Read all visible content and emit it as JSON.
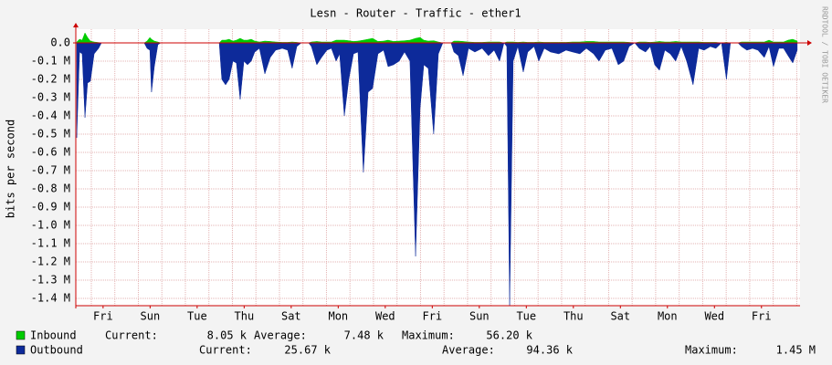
{
  "chart_data": {
    "type": "area",
    "title": "Lesn - Router - Traffic - ether1",
    "y_label": "bits per second",
    "side_text": "RRDTOOL / TOBI OETIKER",
    "xlim": [
      -0.66,
      30.14
    ],
    "ylim": [
      -1440000,
      75000
    ],
    "grid": true,
    "xticks": [
      {
        "value": 0.5,
        "label": "Fri"
      },
      {
        "value": 2.5,
        "label": "Sun"
      },
      {
        "value": 4.5,
        "label": "Tue"
      },
      {
        "value": 6.5,
        "label": "Thu"
      },
      {
        "value": 8.5,
        "label": "Sat"
      },
      {
        "value": 10.5,
        "label": "Mon"
      },
      {
        "value": 12.5,
        "label": "Wed"
      },
      {
        "value": 14.5,
        "label": "Fri"
      },
      {
        "value": 16.5,
        "label": "Sun"
      },
      {
        "value": 18.5,
        "label": "Tue"
      },
      {
        "value": 20.5,
        "label": "Thu"
      },
      {
        "value": 22.5,
        "label": "Sat"
      },
      {
        "value": 24.5,
        "label": "Mon"
      },
      {
        "value": 26.5,
        "label": "Wed"
      },
      {
        "value": 28.5,
        "label": "Fri"
      }
    ],
    "yticks": [
      {
        "value": 0,
        "label": "0.0"
      },
      {
        "value": -100000,
        "label": "-0.1 M"
      },
      {
        "value": -200000,
        "label": "-0.2 M"
      },
      {
        "value": -300000,
        "label": "-0.3 M"
      },
      {
        "value": -400000,
        "label": "-0.4 M"
      },
      {
        "value": -500000,
        "label": "-0.5 M"
      },
      {
        "value": -600000,
        "label": "-0.6 M"
      },
      {
        "value": -700000,
        "label": "-0.7 M"
      },
      {
        "value": -800000,
        "label": "-0.8 M"
      },
      {
        "value": -900000,
        "label": "-0.9 M"
      },
      {
        "value": -1000000,
        "label": "-1.0 M"
      },
      {
        "value": -1100000,
        "label": "-1.1 M"
      },
      {
        "value": -1200000,
        "label": "-1.2 M"
      },
      {
        "value": -1300000,
        "label": "-1.3 M"
      },
      {
        "value": -1400000,
        "label": "-1.4 M"
      }
    ],
    "x": [
      -0.62,
      -0.5,
      -0.39,
      -0.27,
      -0.16,
      -0.04,
      0.12,
      0.31,
      0.43,
      2.25,
      2.37,
      2.49,
      2.56,
      2.68,
      2.83,
      2.95,
      5.44,
      5.55,
      5.71,
      5.86,
      6.02,
      6.17,
      6.33,
      6.49,
      6.64,
      6.8,
      6.95,
      7.15,
      7.38,
      7.61,
      7.84,
      8.12,
      8.35,
      8.54,
      8.74,
      8.93,
      9.24,
      9.36,
      9.59,
      9.79,
      10.02,
      10.21,
      10.41,
      10.56,
      10.76,
      10.95,
      11.15,
      11.34,
      11.57,
      11.77,
      11.96,
      12.19,
      12.43,
      12.62,
      12.85,
      13.09,
      13.32,
      13.55,
      13.79,
      13.98,
      14.14,
      14.33,
      14.56,
      14.76,
      14.95,
      15.3,
      15.42,
      15.61,
      15.81,
      16.04,
      16.31,
      16.62,
      16.89,
      17.13,
      17.36,
      17.55,
      17.67,
      17.79,
      17.94,
      18.14,
      18.37,
      18.56,
      18.83,
      19.03,
      19.26,
      19.53,
      19.88,
      20.19,
      20.47,
      20.78,
      21.05,
      21.36,
      21.59,
      21.86,
      22.14,
      22.41,
      22.64,
      22.87,
      23.11,
      23.3,
      23.57,
      23.77,
      23.96,
      24.16,
      24.39,
      24.62,
      24.85,
      25.09,
      25.32,
      25.59,
      25.83,
      26.06,
      26.33,
      26.56,
      26.8,
      27.01,
      27.18,
      27.5,
      27.65,
      27.88,
      28.12,
      28.35,
      28.62,
      28.82,
      29.01,
      29.24,
      29.44,
      29.63,
      29.83,
      30.02
    ],
    "series": [
      {
        "name": "Outbound",
        "color": "#0d2a9a",
        "stats": [
          {
            "label": "Current:",
            "value": "25.67 k"
          },
          {
            "label": "Average:",
            "value": "94.36 k"
          },
          {
            "label": "Maximum:",
            "value": "1.45 M"
          }
        ],
        "values": [
          -520000,
          -50000,
          -60000,
          -410000,
          -220000,
          -210000,
          -60000,
          -30000,
          0,
          0,
          -30000,
          -40000,
          -270000,
          -130000,
          -10000,
          0,
          0,
          -200000,
          -230000,
          -200000,
          -100000,
          -110000,
          -310000,
          -100000,
          -120000,
          -100000,
          -50000,
          -30000,
          -170000,
          -80000,
          -40000,
          -30000,
          -40000,
          -140000,
          -20000,
          0,
          0,
          -20000,
          -120000,
          -80000,
          -40000,
          -30000,
          -100000,
          -60000,
          -400000,
          -200000,
          -60000,
          -50000,
          -710000,
          -270000,
          -250000,
          -60000,
          -40000,
          -130000,
          -120000,
          -100000,
          -50000,
          -100000,
          -1170000,
          -360000,
          -120000,
          -140000,
          -500000,
          -60000,
          0,
          0,
          -50000,
          -70000,
          -180000,
          -30000,
          -50000,
          -30000,
          -70000,
          -40000,
          -100000,
          0,
          -20000,
          -1450000,
          -100000,
          -20000,
          -160000,
          -50000,
          -20000,
          -100000,
          -30000,
          -50000,
          -60000,
          -40000,
          -50000,
          -60000,
          -30000,
          -60000,
          -100000,
          -40000,
          -30000,
          -120000,
          -100000,
          -20000,
          0,
          -30000,
          -50000,
          -20000,
          -120000,
          -150000,
          -40000,
          -60000,
          -100000,
          -20000,
          -100000,
          -230000,
          -30000,
          -40000,
          -20000,
          -30000,
          0,
          -200000,
          0,
          0,
          -20000,
          -40000,
          -30000,
          -40000,
          -80000,
          -20000,
          -130000,
          -30000,
          -30000,
          -70000,
          -110000,
          -40000
        ]
      },
      {
        "name": "Inbound",
        "color": "#00cc00",
        "stats": [
          {
            "label": "Current:",
            "value": "8.05 k"
          },
          {
            "label": "Average:",
            "value": "7.48 k"
          },
          {
            "label": "Maximum:",
            "value": "56.20 k"
          }
        ],
        "values": [
          5000,
          20000,
          15000,
          55000,
          30000,
          10000,
          5000,
          2000,
          0,
          0,
          10000,
          30000,
          20000,
          10000,
          5000,
          0,
          0,
          15000,
          15000,
          20000,
          10000,
          15000,
          25000,
          15000,
          15000,
          20000,
          10000,
          5000,
          10000,
          8000,
          5000,
          3000,
          3000,
          5000,
          3000,
          0,
          0,
          5000,
          8000,
          5000,
          5000,
          5000,
          15000,
          15000,
          15000,
          12000,
          8000,
          10000,
          15000,
          20000,
          25000,
          8000,
          10000,
          15000,
          8000,
          10000,
          12000,
          15000,
          25000,
          30000,
          15000,
          10000,
          12000,
          5000,
          0,
          0,
          10000,
          10000,
          8000,
          5000,
          3000,
          3000,
          5000,
          5000,
          5000,
          0,
          5000,
          5000,
          5000,
          3000,
          5000,
          3000,
          3000,
          5000,
          3000,
          3000,
          3000,
          3000,
          5000,
          5000,
          8000,
          8000,
          5000,
          5000,
          5000,
          5000,
          5000,
          3000,
          0,
          5000,
          5000,
          3000,
          5000,
          8000,
          5000,
          5000,
          8000,
          5000,
          5000,
          5000,
          5000,
          3000,
          3000,
          3000,
          0,
          3000,
          0,
          0,
          5000,
          5000,
          5000,
          5000,
          5000,
          15000,
          5000,
          5000,
          5000,
          15000,
          20000,
          10000
        ]
      }
    ]
  }
}
